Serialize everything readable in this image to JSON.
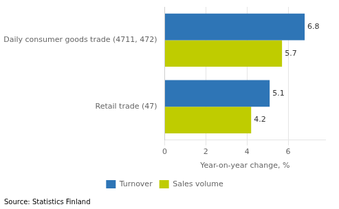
{
  "chart_data": {
    "type": "bar",
    "orientation": "horizontal",
    "categories": [
      "Daily consumer goods trade (4711, 472)",
      "Retail trade (47)"
    ],
    "series": [
      {
        "name": "Turnover",
        "color": "#2E75B6",
        "values": [
          6.8,
          5.1
        ]
      },
      {
        "name": "Sales volume",
        "color": "#BFCC00",
        "values": [
          5.7,
          4.2
        ]
      }
    ],
    "xlabel": "Year-on-year change, %",
    "xlim": [
      0,
      7.8
    ],
    "xticks": [
      0,
      2,
      4,
      6
    ],
    "grid": true,
    "data_labels": true,
    "legend": "bottom",
    "annotations": [
      "Source: Statistics Finland"
    ]
  }
}
